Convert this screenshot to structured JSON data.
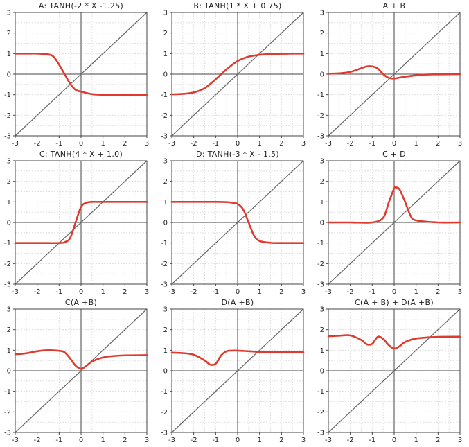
{
  "figure": {
    "title": "",
    "colors": {
      "curve": "#e03a2f",
      "diagonal": "#666666",
      "zero_axes": "#444444",
      "grid": "#d9d9d9"
    }
  },
  "chart_data": [
    {
      "type": "line",
      "title": "A: TANH(-2 * X -1.25)",
      "xlim": [
        -3,
        3
      ],
      "ylim": [
        -3,
        3
      ],
      "xticks": [
        "-3",
        "-2",
        "-1",
        "0",
        "1",
        "2",
        "3"
      ],
      "yticks": [
        "-3",
        "-2",
        "-1",
        "0",
        "1",
        "2",
        "3"
      ],
      "grid": true,
      "x": [
        -3,
        -2.5,
        -2,
        -1.5,
        -1.25,
        -1,
        -0.75,
        -0.5,
        -0.25,
        0,
        0.5,
        1,
        2,
        3
      ],
      "series": [
        {
          "values": [
            1,
            1,
            1,
            0.96,
            0.85,
            0.46,
            0,
            -0.46,
            -0.76,
            -0.85,
            -0.97,
            -1,
            -1,
            -1
          ]
        }
      ],
      "reference_line": "y = x"
    },
    {
      "type": "line",
      "title": "B: TANH(1 * X + 0.75)",
      "xlim": [
        -3,
        3
      ],
      "ylim": [
        -3,
        3
      ],
      "xticks": [
        "-3",
        "-2",
        "-1",
        "0",
        "1",
        "2",
        "3"
      ],
      "yticks": [
        "-3",
        "-2",
        "-1",
        "0",
        "1",
        "2",
        "3"
      ],
      "grid": true,
      "x": [
        -3,
        -2.5,
        -2,
        -1.5,
        -1,
        -0.5,
        0,
        0.5,
        1,
        1.5,
        2,
        2.5,
        3
      ],
      "series": [
        {
          "values": [
            -0.98,
            -0.96,
            -0.89,
            -0.68,
            -0.25,
            0.24,
            0.64,
            0.85,
            0.94,
            0.98,
            0.99,
            1,
            1
          ]
        }
      ],
      "reference_line": "y = x"
    },
    {
      "type": "line",
      "title": "A + B",
      "xlim": [
        -3,
        3
      ],
      "ylim": [
        -3,
        3
      ],
      "xticks": [
        "-3",
        "-2",
        "-1",
        "0",
        "1",
        "2",
        "3"
      ],
      "yticks": [
        "-3",
        "-2",
        "-1",
        "0",
        "1",
        "2",
        "3"
      ],
      "grid": true,
      "x": [
        -3,
        -2.5,
        -2,
        -1.5,
        -1.25,
        -1,
        -0.75,
        -0.5,
        -0.25,
        0,
        0.5,
        1,
        1.5,
        2,
        3
      ],
      "series": [
        {
          "values": [
            0.02,
            0.04,
            0.11,
            0.29,
            0.38,
            0.38,
            0.28,
            0.0,
            -0.18,
            -0.21,
            -0.12,
            -0.06,
            -0.02,
            -0.01,
            0
          ]
        }
      ],
      "reference_line": "y = x"
    },
    {
      "type": "line",
      "title": "C: TANH(4 * X + 1.0)",
      "xlim": [
        -3,
        3
      ],
      "ylim": [
        -3,
        3
      ],
      "xticks": [
        "-3",
        "-2",
        "-1",
        "0",
        "1",
        "2",
        "3"
      ],
      "yticks": [
        "-3",
        "-2",
        "-1",
        "0",
        "1",
        "2",
        "3"
      ],
      "grid": true,
      "x": [
        -3,
        -2,
        -1,
        -0.75,
        -0.5,
        -0.25,
        0,
        0.25,
        0.5,
        1,
        2,
        3
      ],
      "series": [
        {
          "values": [
            -1,
            -1,
            -1,
            -0.96,
            -0.76,
            0,
            0.76,
            0.96,
            1,
            1,
            1,
            1
          ]
        }
      ],
      "reference_line": "y = x"
    },
    {
      "type": "line",
      "title": "D: TANH(-3 * X - 1.5)",
      "xlim": [
        -3,
        3
      ],
      "ylim": [
        -3,
        3
      ],
      "xticks": [
        "-3",
        "-2",
        "-1",
        "0",
        "1",
        "2",
        "3"
      ],
      "yticks": [
        "-3",
        "-2",
        "-1",
        "0",
        "1",
        "2",
        "3"
      ],
      "grid": true,
      "x": [
        -3,
        -2,
        -1,
        -0.5,
        -0.25,
        0,
        0.25,
        0.5,
        0.75,
        1,
        1.5,
        2,
        3
      ],
      "series": [
        {
          "values": [
            1,
            1,
            1,
            0.99,
            0.96,
            0.9,
            0.64,
            0,
            -0.64,
            -0.9,
            -0.99,
            -1,
            -1
          ]
        }
      ],
      "reference_line": "y = x"
    },
    {
      "type": "line",
      "title": "C + D",
      "xlim": [
        -3,
        3
      ],
      "ylim": [
        -3,
        3
      ],
      "xticks": [
        "-3",
        "-2",
        "-1",
        "0",
        "1",
        "2",
        "3"
      ],
      "yticks": [
        "-3",
        "-2",
        "-1",
        "0",
        "1",
        "2",
        "3"
      ],
      "grid": true,
      "x": [
        -3,
        -2,
        -1,
        -0.5,
        -0.25,
        0,
        0.1,
        0.25,
        0.5,
        0.75,
        1,
        2,
        3
      ],
      "series": [
        {
          "values": [
            0,
            0,
            0,
            0.23,
            0.96,
            1.66,
            1.7,
            1.6,
            1.0,
            0.32,
            0.1,
            0,
            0
          ]
        }
      ],
      "reference_line": "y = x"
    },
    {
      "type": "line",
      "title": "C(A +B)",
      "xlim": [
        -3,
        3
      ],
      "ylim": [
        -3,
        3
      ],
      "xticks": [
        "-3",
        "-2",
        "-1",
        "0",
        "1",
        "2",
        "3"
      ],
      "yticks": [
        "-3",
        "-2",
        "-1",
        "0",
        "1",
        "2",
        "3"
      ],
      "grid": true,
      "x": [
        -3,
        -2.5,
        -2,
        -1.5,
        -1,
        -0.75,
        -0.5,
        -0.25,
        0,
        0.25,
        0.5,
        1,
        1.5,
        2,
        3
      ],
      "series": [
        {
          "values": [
            0.8,
            0.85,
            0.95,
            1.0,
            0.97,
            0.9,
            0.6,
            0.25,
            0.1,
            0.25,
            0.45,
            0.65,
            0.72,
            0.75,
            0.76
          ]
        }
      ],
      "reference_line": "y = x"
    },
    {
      "type": "line",
      "title": "D(A +B)",
      "xlim": [
        -3,
        3
      ],
      "ylim": [
        -3,
        3
      ],
      "xticks": [
        "-3",
        "-2",
        "-1",
        "0",
        "1",
        "2",
        "3"
      ],
      "yticks": [
        "-3",
        "-2",
        "-1",
        "0",
        "1",
        "2",
        "3"
      ],
      "grid": true,
      "x": [
        -3,
        -2.5,
        -2,
        -1.5,
        -1.25,
        -1,
        -0.75,
        -0.5,
        -0.25,
        0,
        0.5,
        1,
        2,
        3
      ],
      "series": [
        {
          "values": [
            0.88,
            0.86,
            0.78,
            0.5,
            0.3,
            0.34,
            0.75,
            0.95,
            0.98,
            0.98,
            0.95,
            0.92,
            0.9,
            0.9
          ]
        }
      ],
      "reference_line": "y = x"
    },
    {
      "type": "line",
      "title": "C(A + B) + D(A +B)",
      "xlim": [
        -3,
        3
      ],
      "ylim": [
        -3,
        3
      ],
      "xticks": [
        "-3",
        "-2",
        "-1",
        "0",
        "1",
        "2",
        "3"
      ],
      "yticks": [
        "-3",
        "-2",
        "-1",
        "0",
        "1",
        "2",
        "3"
      ],
      "grid": true,
      "x": [
        -3,
        -2.5,
        -2,
        -1.5,
        -1.25,
        -1,
        -0.75,
        -0.5,
        -0.25,
        0,
        0.25,
        0.5,
        1,
        2,
        3
      ],
      "series": [
        {
          "values": [
            1.68,
            1.71,
            1.72,
            1.5,
            1.29,
            1.31,
            1.65,
            1.55,
            1.25,
            1.08,
            1.2,
            1.4,
            1.57,
            1.65,
            1.66
          ]
        }
      ],
      "reference_line": "y = x"
    }
  ]
}
